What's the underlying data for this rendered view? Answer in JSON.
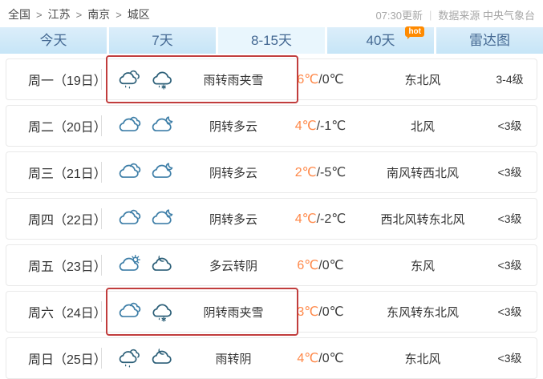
{
  "header": {
    "breadcrumb": {
      "items": [
        "全国",
        "江苏",
        "南京",
        "城区"
      ],
      "separator": ">"
    },
    "update_time": "07:30更新",
    "divider": "|",
    "source": "数据来源 中央气象台"
  },
  "tabs": [
    {
      "label": "今天"
    },
    {
      "label": "7天"
    },
    {
      "label": "8-15天",
      "light": true
    },
    {
      "label": "40天",
      "badge": "hot"
    },
    {
      "label": "雷达图"
    }
  ],
  "colors": {
    "tab_background": "#cde8f7",
    "tab_light_background": "#e9f6fd",
    "tab_text": "#446892",
    "hot_badge": "#ff8a00",
    "temp_high": "#ff8747",
    "highlight_box": "#c13d3d",
    "icon_blue": "#3f7fa8",
    "icon_dark": "#2c5f78"
  },
  "forecast": {
    "rows": [
      {
        "day": "周一（19日）",
        "icons": [
          "cloud-rain",
          "cloud-rain-snow"
        ],
        "weather": "雨转雨夹雪",
        "temp_high": "6℃",
        "temp_low": "/0℃",
        "wind": "东北风",
        "level": "3-4级",
        "highlighted": true
      },
      {
        "day": "周二（20日）",
        "icons": [
          "cloud-overcast",
          "cloud-moon"
        ],
        "weather": "阴转多云",
        "temp_high": "4℃",
        "temp_low": "/-1℃",
        "wind": "北风",
        "level": "<3级",
        "highlighted": false
      },
      {
        "day": "周三（21日）",
        "icons": [
          "cloud-overcast",
          "cloud-moon"
        ],
        "weather": "阴转多云",
        "temp_high": "2℃",
        "temp_low": "/-5℃",
        "wind": "南风转西北风",
        "level": "<3级",
        "highlighted": false
      },
      {
        "day": "周四（22日）",
        "icons": [
          "cloud-overcast",
          "cloud-moon"
        ],
        "weather": "阴转多云",
        "temp_high": "4℃",
        "temp_low": "/-2℃",
        "wind": "西北风转东北风",
        "level": "<3级",
        "highlighted": false
      },
      {
        "day": "周五（23日）",
        "icons": [
          "cloud-sun",
          "cloud-dark"
        ],
        "weather": "多云转阴",
        "temp_high": "6℃",
        "temp_low": "/0℃",
        "wind": "东风",
        "level": "<3级",
        "highlighted": false
      },
      {
        "day": "周六（24日）",
        "icons": [
          "cloud-overcast",
          "cloud-rain-snow"
        ],
        "weather": "阴转雨夹雪",
        "temp_high": "3℃",
        "temp_low": "/0℃",
        "wind": "东风转东北风",
        "level": "<3级",
        "highlighted": true
      },
      {
        "day": "周日（25日）",
        "icons": [
          "cloud-rain",
          "cloud-dark"
        ],
        "weather": "雨转阴",
        "temp_high": "4℃",
        "temp_low": "/0℃",
        "wind": "东北风",
        "level": "<3级",
        "highlighted": false
      }
    ]
  }
}
